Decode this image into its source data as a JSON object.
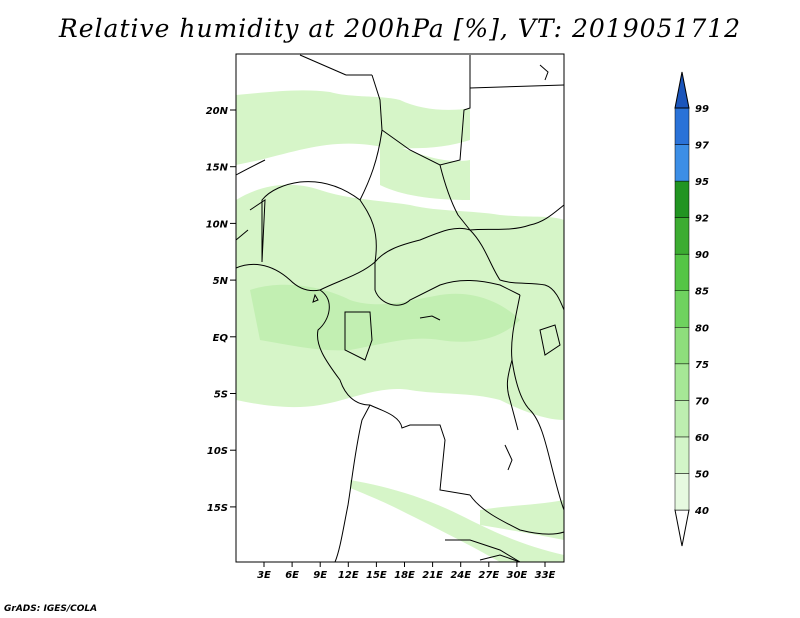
{
  "title": "Relative humidity at 200hPa [%], VT: 2019051712",
  "credit": "GrADS: IGES/COLA",
  "map": {
    "variable": "Relative humidity",
    "level": "200hPa",
    "units": "%",
    "valid_time": "2019051712",
    "lat_labels": [
      "20N",
      "15N",
      "10N",
      "5N",
      "EQ",
      "5S",
      "10S",
      "15S"
    ],
    "lon_labels": [
      "3E",
      "6E",
      "9E",
      "12E",
      "15E",
      "18E",
      "21E",
      "24E",
      "27E",
      "30E",
      "33E"
    ]
  },
  "colorbar": {
    "levels": [
      "40",
      "50",
      "60",
      "70",
      "75",
      "80",
      "85",
      "90",
      "92",
      "95",
      "97",
      "99"
    ],
    "colors": [
      "#e6f9e0",
      "#d2f5c8",
      "#bdeeb0",
      "#a6e796",
      "#8ede7c",
      "#6fd25f",
      "#55c546",
      "#3cac31",
      "#219421",
      "#3c8ee6",
      "#2a72d8",
      "#1b55bb"
    ],
    "upper_arrow_color": "#1b55bb",
    "lower_arrow_color": "#ffffff"
  },
  "colors": {
    "light_green": "#d6f5c8",
    "medium_green": "#c2efb2",
    "border": "#000000"
  }
}
